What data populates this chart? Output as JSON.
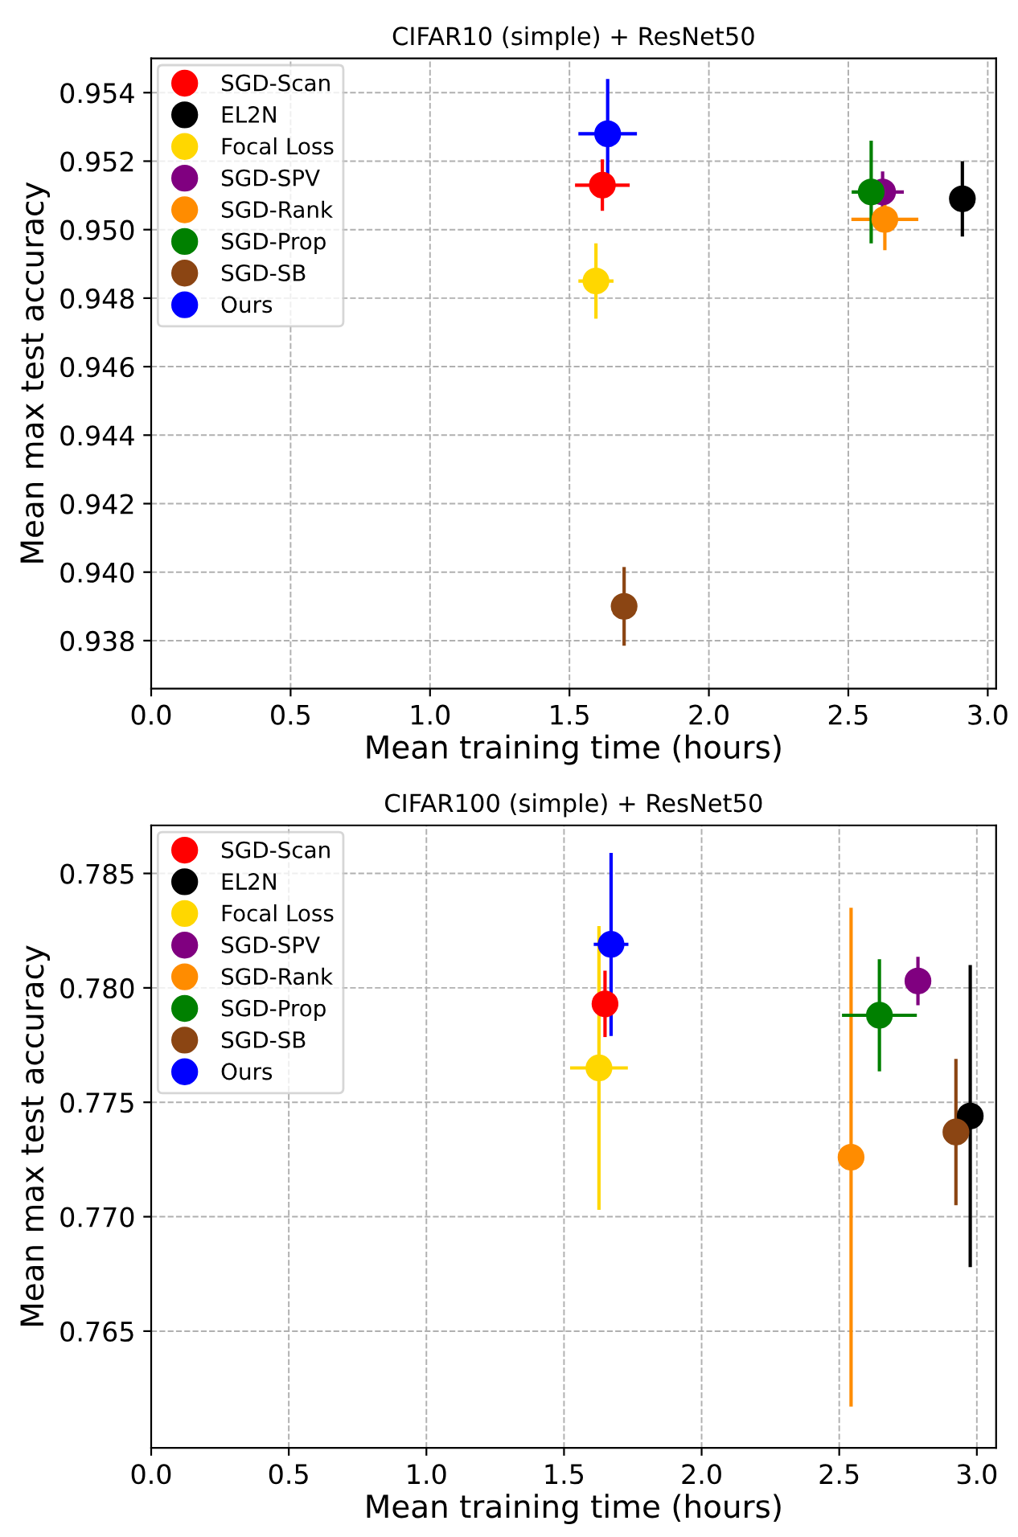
{
  "chart_data": [
    {
      "type": "scatter",
      "title": "CIFAR10 (simple) + ResNet50",
      "xlabel": "Mean training time (hours)",
      "ylabel": "Mean max test accuracy",
      "marker": "circle",
      "grid": true,
      "legend": "top left",
      "xlim": [
        0,
        3.03
      ],
      "xticks": [
        {
          "value": 0,
          "label": "0.0"
        },
        0.5,
        {
          "value": 1,
          "label": "1.0"
        },
        1.5,
        {
          "value": 2,
          "label": "2.0"
        },
        2.5,
        {
          "value": 3,
          "label": "3.0"
        }
      ],
      "ylim": [
        0.9366,
        0.955
      ],
      "yticks": [
        {
          "value": 0.938,
          "label": "0.938"
        },
        {
          "value": 0.94,
          "label": "0.940"
        },
        0.942,
        0.944,
        0.946,
        0.948,
        {
          "value": 0.95,
          "label": "0.950"
        },
        0.952,
        0.954
      ],
      "series": [
        {
          "name": "SGD-Scan",
          "color": "#ff0000",
          "x": [
            1.618
          ],
          "values": [
            0.9513
          ],
          "errors": [
            0.00075
          ],
          "xerrors": [
            0.098
          ]
        },
        {
          "name": "EL2N",
          "color": "#000000",
          "x": [
            2.909
          ],
          "values": [
            0.9509
          ],
          "errors": [
            0.0011
          ],
          "xerrors": [
            0.03
          ]
        },
        {
          "name": "Focal Loss",
          "color": "#ffd700",
          "x": [
            1.595
          ],
          "values": [
            0.9485
          ],
          "errors": [
            0.0011
          ],
          "xerrors": [
            0.063
          ]
        },
        {
          "name": "SGD-SPV",
          "color": "#800080",
          "x": [
            2.623
          ],
          "values": [
            0.9511
          ],
          "errors": [
            0.0006
          ],
          "xerrors": [
            0.076
          ]
        },
        {
          "name": "SGD-Rank",
          "color": "#ff8c00",
          "x": [
            2.631
          ],
          "values": [
            0.9503
          ],
          "errors": [
            0.0009
          ],
          "xerrors": [
            0.12
          ]
        },
        {
          "name": "SGD-Prop",
          "color": "#008000",
          "x": [
            2.582
          ],
          "values": [
            0.9511
          ],
          "errors": [
            0.0015
          ],
          "xerrors": [
            0.07
          ]
        },
        {
          "name": "SGD-SB",
          "color": "#8b4513",
          "x": [
            1.696
          ],
          "values": [
            0.939
          ],
          "errors": [
            0.00115
          ],
          "xerrors": [
            null
          ]
        },
        {
          "name": "Ours",
          "color": "#0000ff",
          "x": [
            1.637
          ],
          "values": [
            0.9528
          ],
          "errors": [
            0.0016
          ],
          "xerrors": [
            0.105
          ]
        }
      ]
    },
    {
      "type": "scatter",
      "title": "CIFAR100 (simple) + ResNet50",
      "xlabel": "Mean training time (hours)",
      "ylabel": "Mean max test accuracy",
      "marker": "circle",
      "grid": true,
      "legend": "top left",
      "xlim": [
        0,
        3.07
      ],
      "xticks": [
        {
          "value": 0,
          "label": "0.0"
        },
        0.5,
        {
          "value": 1,
          "label": "1.0"
        },
        1.5,
        {
          "value": 2,
          "label": "2.0"
        },
        2.5,
        {
          "value": 3,
          "label": "3.0"
        }
      ],
      "ylim": [
        0.7599,
        0.7871
      ],
      "yticks": [
        0.765,
        {
          "value": 0.77,
          "label": "0.770"
        },
        0.775,
        {
          "value": 0.78,
          "label": "0.780"
        },
        0.785
      ],
      "series": [
        {
          "name": "SGD-Scan",
          "color": "#ff0000",
          "x": [
            1.649
          ],
          "values": [
            0.7793
          ],
          "errors": [
            0.00145
          ],
          "xerrors": [
            0.048
          ]
        },
        {
          "name": "EL2N",
          "color": "#000000",
          "x": [
            2.976
          ],
          "values": [
            0.7744
          ],
          "errors": [
            0.0066
          ],
          "xerrors": [
            null
          ]
        },
        {
          "name": "Focal Loss",
          "color": "#ffd700",
          "x": [
            1.627
          ],
          "values": [
            0.7765
          ],
          "errors": [
            0.0062
          ],
          "xerrors": [
            0.105
          ]
        },
        {
          "name": "SGD-SPV",
          "color": "#800080",
          "x": [
            2.786
          ],
          "values": [
            0.7803
          ],
          "errors": [
            0.00106
          ],
          "xerrors": [
            null
          ]
        },
        {
          "name": "SGD-Rank",
          "color": "#ff8c00",
          "x": [
            2.543
          ],
          "values": [
            0.7726
          ],
          "errors": [
            0.0109
          ],
          "xerrors": [
            0.02
          ]
        },
        {
          "name": "SGD-Prop",
          "color": "#008000",
          "x": [
            2.646
          ],
          "values": [
            0.7788
          ],
          "errors": [
            0.00245
          ],
          "xerrors": [
            0.136
          ]
        },
        {
          "name": "SGD-SB",
          "color": "#8b4513",
          "x": [
            2.924
          ],
          "values": [
            0.7737
          ],
          "errors": [
            0.0032
          ],
          "xerrors": [
            null
          ]
        },
        {
          "name": "Ours",
          "color": "#0000ff",
          "x": [
            1.671
          ],
          "values": [
            0.7819
          ],
          "errors": [
            0.004
          ],
          "xerrors": [
            0.063
          ]
        }
      ]
    }
  ]
}
